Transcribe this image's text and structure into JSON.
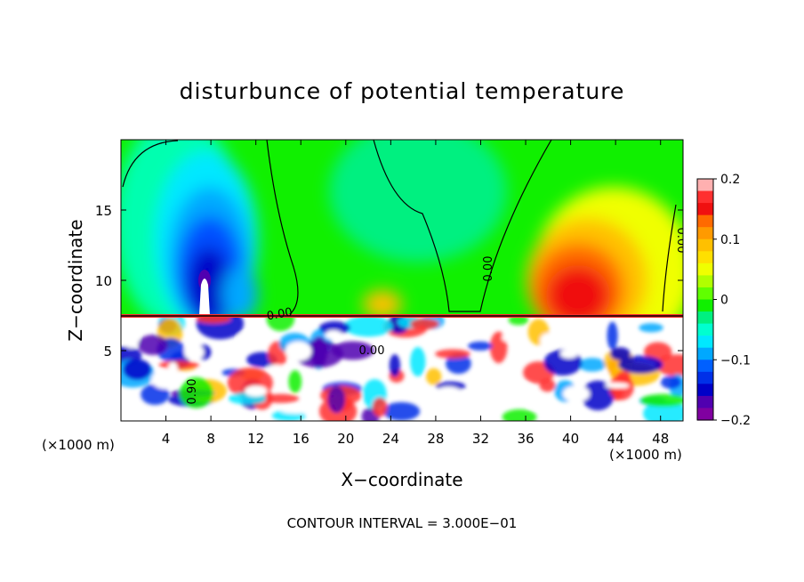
{
  "chart_data": {
    "type": "heatmap",
    "title": "disturbunce of potential temperature",
    "xlabel": "X−coordinate",
    "ylabel": "Z−coordinate",
    "x_unit_left": "(×1000 m)",
    "x_unit_right": "(×1000 m)",
    "xlim": [
      0,
      50
    ],
    "ylim": [
      0,
      20
    ],
    "x_ticks": [
      4,
      8,
      12,
      16,
      20,
      24,
      28,
      32,
      36,
      40,
      44,
      48
    ],
    "x_tick_labels": [
      "4",
      "8",
      "12",
      "16",
      "20",
      "24",
      "28",
      "32",
      "36",
      "40",
      "44",
      "48"
    ],
    "y_ticks": [
      5,
      10,
      15
    ],
    "y_tick_labels": [
      "5",
      "10",
      "15"
    ],
    "colorbar": {
      "range": [
        -0.2,
        0.2
      ],
      "ticks": [
        0.2,
        0.1,
        0,
        -0.1,
        -0.2
      ],
      "tick_labels": [
        "0.2",
        "0.1",
        "0",
        "−0.1",
        "−0.2"
      ],
      "colors": [
        "#ffb0b0",
        "#ff3030",
        "#f01010",
        "#ff6a00",
        "#ff9a00",
        "#ffc000",
        "#ffe000",
        "#f0ff00",
        "#b0ff00",
        "#60ff00",
        "#10f000",
        "#00f080",
        "#00ffd0",
        "#00e8ff",
        "#00a8ff",
        "#0060ff",
        "#0030e8",
        "#0000c8",
        "#5000b0",
        "#8000a0"
      ]
    },
    "contour_labels": [
      "0.00",
      "0.00",
      "0.00",
      "0.00",
      "0.90"
    ],
    "boundary_z": 7.3,
    "features": [
      {
        "kind": "cold anomaly",
        "center_x": 8,
        "center_z": 11,
        "value": -0.18
      },
      {
        "kind": "warm anomaly",
        "center_x": 40,
        "center_z": 10,
        "value": 0.16
      }
    ],
    "grid": false
  },
  "footer": {
    "contour_interval": "CONTOUR INTERVAL =  3.000E−01"
  }
}
